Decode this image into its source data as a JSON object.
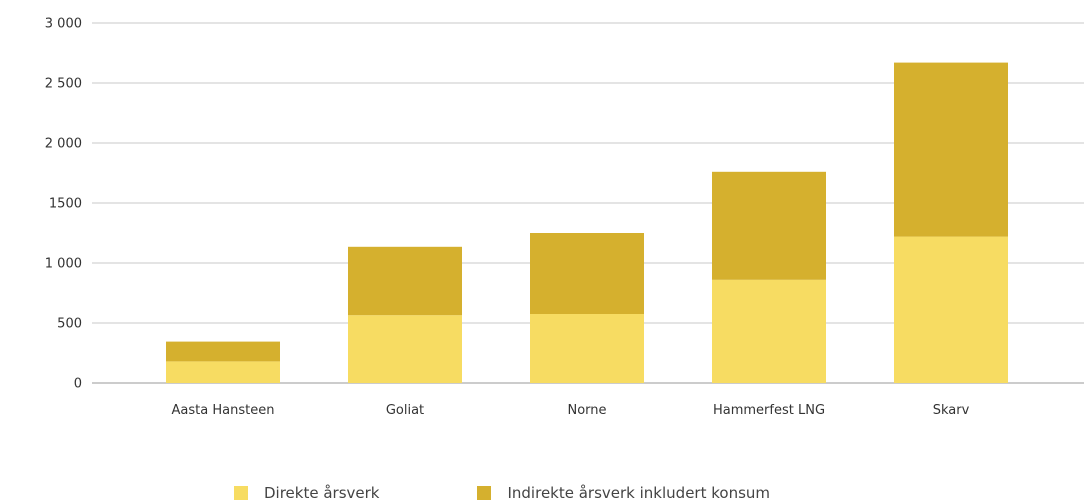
{
  "chart_data": {
    "type": "bar",
    "stacked": true,
    "categories": [
      "Aasta Hansteen",
      "Goliat",
      "Norne",
      "Hammerfest LNG",
      "Skarv"
    ],
    "series": [
      {
        "name": "Direkte årsverk",
        "color": "#F7DC62",
        "values": [
          180,
          565,
          575,
          860,
          1220
        ]
      },
      {
        "name": "Indirekte årsverk inkludert konsum",
        "color": "#D5B02E",
        "values": [
          165,
          570,
          675,
          900,
          1450
        ]
      }
    ],
    "ylim": [
      0,
      3000
    ],
    "yticks": [
      0,
      500,
      1000,
      1500,
      2000,
      2500,
      3000
    ],
    "ytick_labels": [
      "0",
      "500",
      "1 000",
      "1500",
      "2 000",
      "2 500",
      "3 000"
    ],
    "grid": true,
    "legend_position": "bottom",
    "title": "",
    "xlabel": "",
    "ylabel": ""
  }
}
